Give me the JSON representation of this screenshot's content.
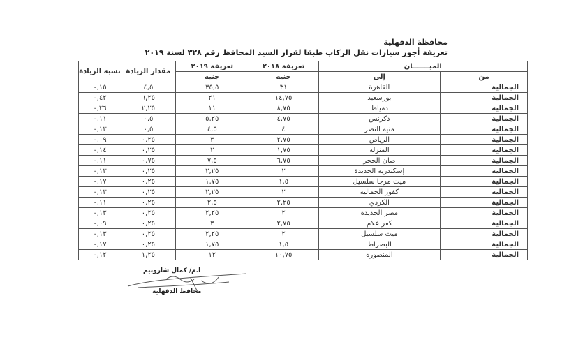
{
  "document": {
    "governorate": "محافظة الدقهلية",
    "title": "تعريفة أجور سيارات نقل الركاب طبقا لقرار السيد المحافظ رقم ٣٢٨ لسنة ٢٠١٩"
  },
  "table": {
    "headers": {
      "route": "الميـــــــان",
      "from": "من",
      "to": "إلى",
      "tariff_2018": "تعريفة ٢٠١٨",
      "tariff_2019": "تعريفة ٢٠١٩",
      "unit_2018": "جنيه",
      "unit_2019": "جنيه",
      "increase_amount": "مقدار الزيادة",
      "increase_ratio": "نسبة الزيادة"
    },
    "rows": [
      {
        "from": "الجمالية",
        "to": "القاهرة",
        "t2018": "٣١",
        "t2019": "٣٥,٥",
        "amount": "٤,٥",
        "ratio": "٠,١٥"
      },
      {
        "from": "الجمالية",
        "to": "بورسعيد",
        "t2018": "١٤,٧٥",
        "t2019": "٢١",
        "amount": "٦,٢٥",
        "ratio": "٠,٤٢"
      },
      {
        "from": "الجمالية",
        "to": "دمياط",
        "t2018": "٨,٧٥",
        "t2019": "١١",
        "amount": "٢,٢٥",
        "ratio": "٠,٢٦"
      },
      {
        "from": "الجمالية",
        "to": "دكرنس",
        "t2018": "٤,٧٥",
        "t2019": "٥,٢٥",
        "amount": "٠,٥",
        "ratio": "٠,١١"
      },
      {
        "from": "الجمالية",
        "to": "منيه النصر",
        "t2018": "٤",
        "t2019": "٤,٥",
        "amount": "٠,٥",
        "ratio": "٠,١٣"
      },
      {
        "from": "الجمالية",
        "to": "الرياض",
        "t2018": "٢,٧٥",
        "t2019": "٣",
        "amount": "٠,٢٥",
        "ratio": "٠,٠٩"
      },
      {
        "from": "الجمالية",
        "to": "المنزلة",
        "t2018": "١,٧٥",
        "t2019": "٢",
        "amount": "٠,٢٥",
        "ratio": "٠,١٤"
      },
      {
        "from": "الجمالية",
        "to": "صان الحجر",
        "t2018": "٦,٧٥",
        "t2019": "٧,٥",
        "amount": "٠,٧٥",
        "ratio": "٠,١١"
      },
      {
        "from": "الجمالية",
        "to": "إسكندرية الجديدة",
        "t2018": "٢",
        "t2019": "٢,٢٥",
        "amount": "٠,٢٥",
        "ratio": "٠,١٣"
      },
      {
        "from": "الجمالية",
        "to": "ميت مرجا سلسيل",
        "t2018": "١,٥",
        "t2019": "١,٧٥",
        "amount": "٠,٢٥",
        "ratio": "٠,١٧"
      },
      {
        "from": "الجمالية",
        "to": "كفور الجمالية",
        "t2018": "٢",
        "t2019": "٢,٢٥",
        "amount": "٠,٢٥",
        "ratio": "٠,١٣"
      },
      {
        "from": "الجمالية",
        "to": "الكردي",
        "t2018": "٢,٢٥",
        "t2019": "٢,٥",
        "amount": "٠,٢٥",
        "ratio": "٠,١١"
      },
      {
        "from": "الجمالية",
        "to": "مصر الجديدة",
        "t2018": "٢",
        "t2019": "٢,٢٥",
        "amount": "٠,٢٥",
        "ratio": "٠,١٣"
      },
      {
        "from": "الجمالية",
        "to": "كفر علام",
        "t2018": "٢,٧٥",
        "t2019": "٣",
        "amount": "٠,٢٥",
        "ratio": "٠,٠٩"
      },
      {
        "from": "الجمالية",
        "to": "ميت سلسيل",
        "t2018": "٢",
        "t2019": "٢,٢٥",
        "amount": "٠,٢٥",
        "ratio": "٠,١٣"
      },
      {
        "from": "الجمالية",
        "to": "البصراط",
        "t2018": "١,٥",
        "t2019": "١,٧٥",
        "amount": "٠,٢٥",
        "ratio": "٠,١٧"
      },
      {
        "from": "الجمالية",
        "to": "المنصورة",
        "t2018": "١٠,٧٥",
        "t2019": "١٢",
        "amount": "١,٢٥",
        "ratio": "٠,١٢"
      }
    ]
  },
  "signature": {
    "name": "ا.م/ كمال شاروبيم",
    "title": "محافظ الدقهلية"
  }
}
